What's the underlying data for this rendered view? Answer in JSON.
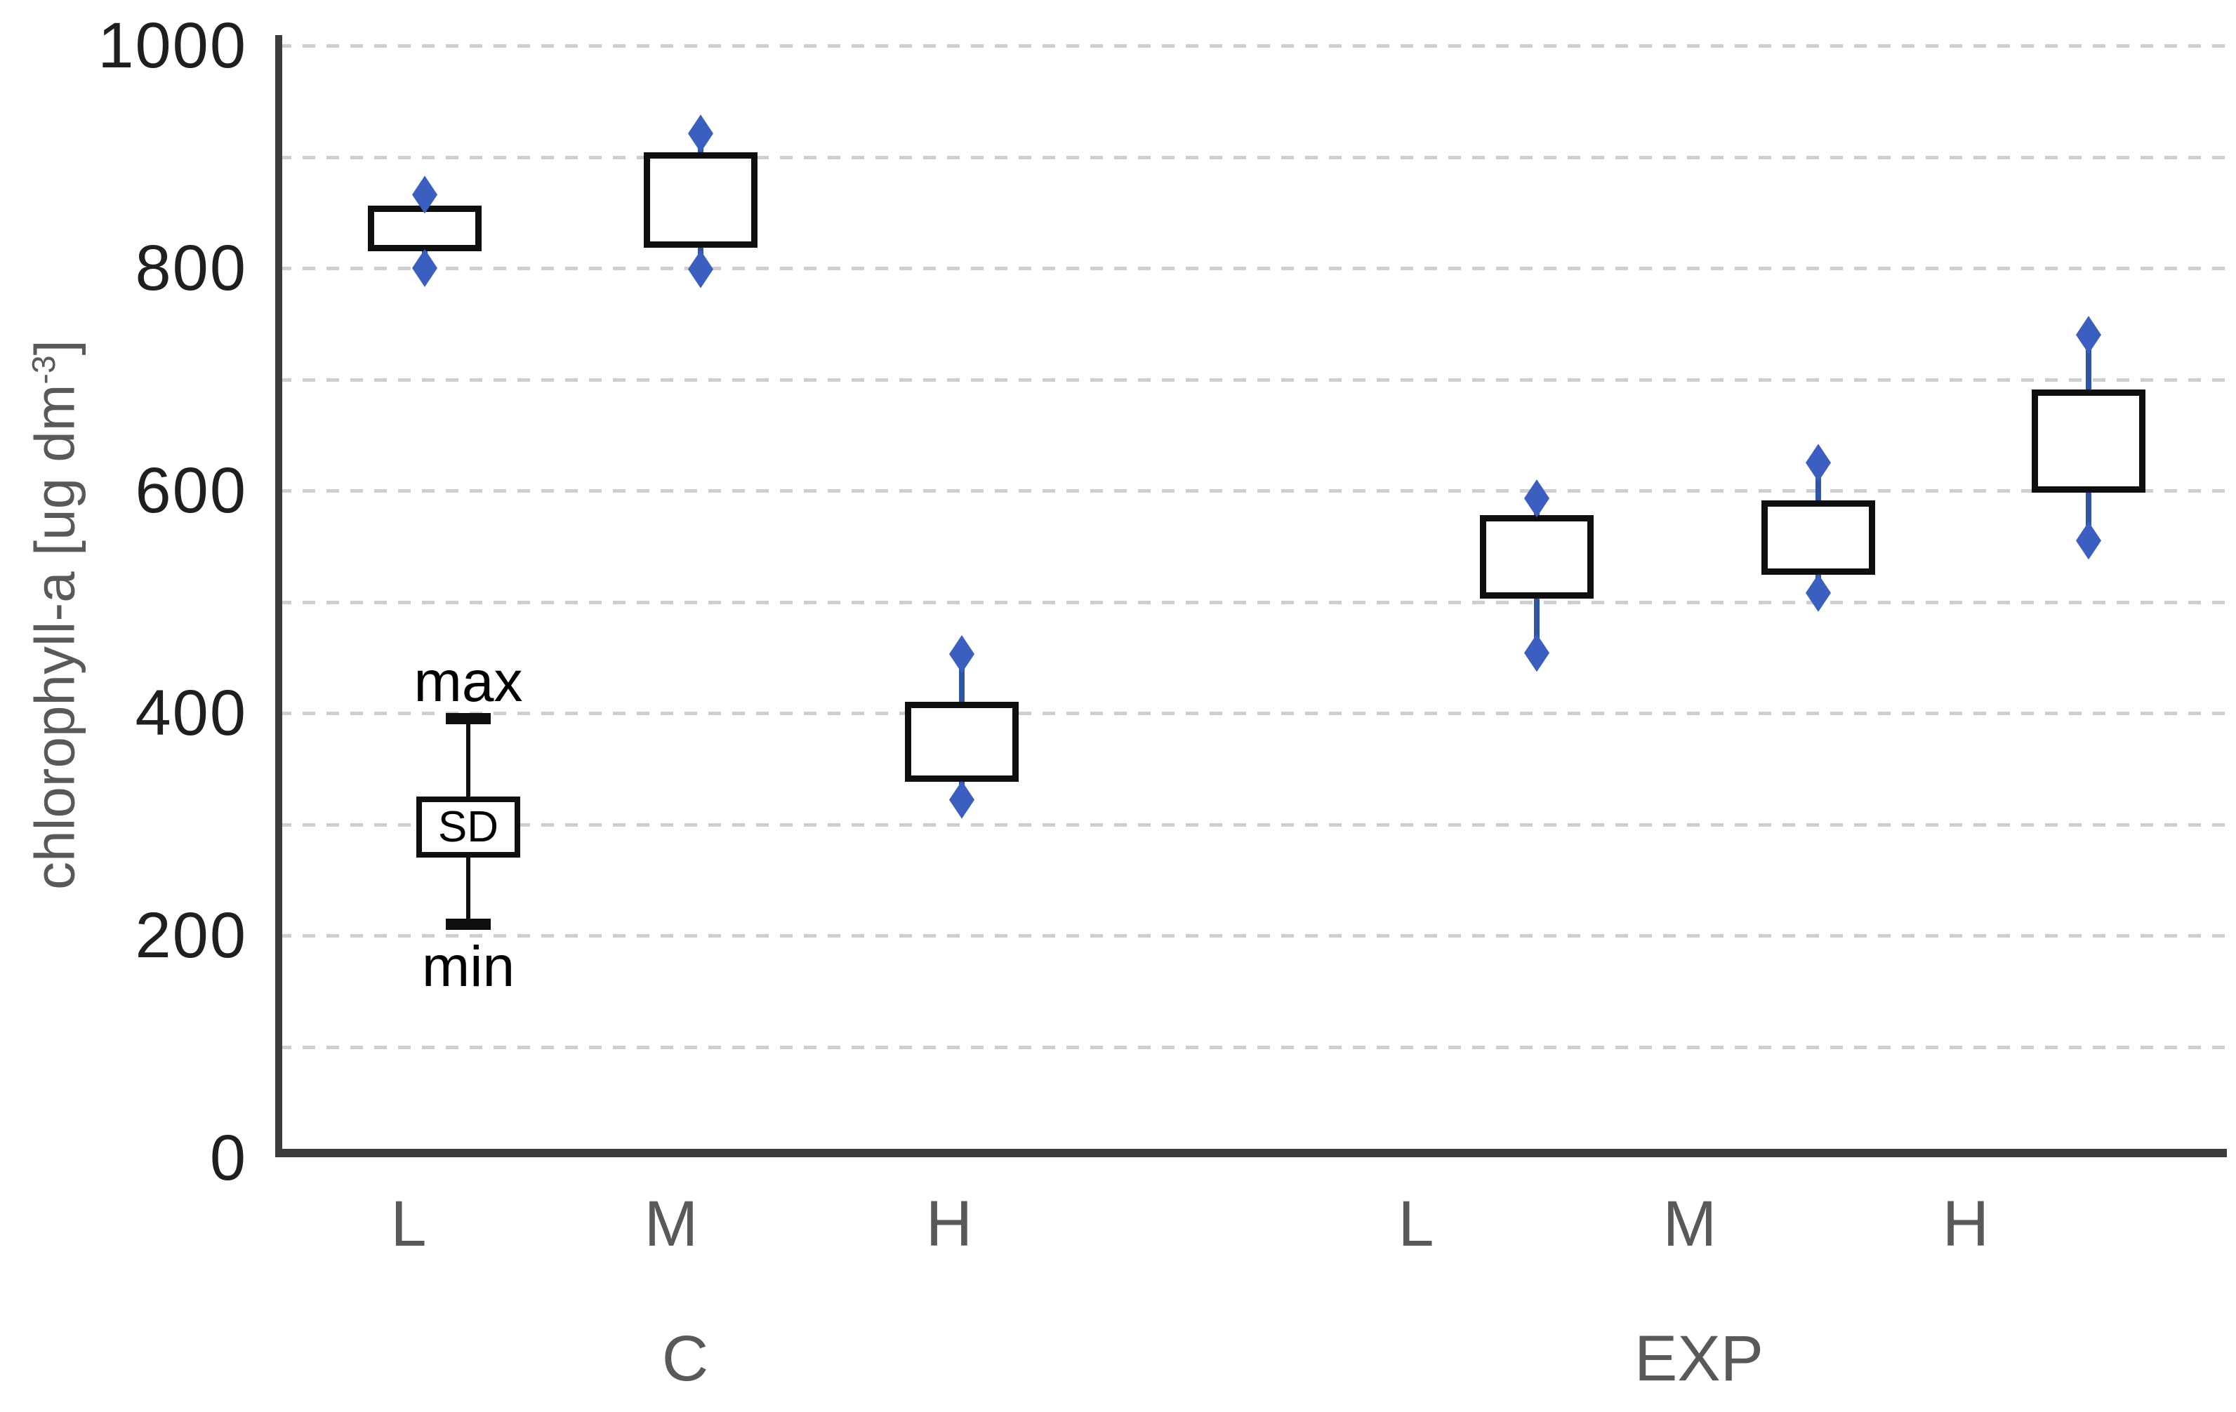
{
  "y_axis": {
    "title_main": "chlorophyll-a [ug dm",
    "title_sup": "-3",
    "title_close": "]",
    "tick_labels": [
      "0",
      "200",
      "400",
      "600",
      "800",
      "1000"
    ],
    "tick_values": [
      0,
      200,
      400,
      600,
      800,
      1000
    ],
    "min": 0,
    "max": 1000,
    "grid_step": 100
  },
  "x_axis": {
    "category_labels": [
      "L",
      "M",
      "H",
      "L",
      "M",
      "H"
    ],
    "group_labels": [
      "C",
      "EXP"
    ]
  },
  "legend": {
    "max_label": "max",
    "sd_label": "SD",
    "min_label": "min",
    "max_value": 395,
    "sd_high": 325,
    "sd_low": 270,
    "min_value": 210
  },
  "colors": {
    "background": "#ffffff",
    "grid": "#cfcfcf",
    "axis": "#3c3c3c",
    "tick_text": "#1f1f1f",
    "category_text": "#595959",
    "box_stroke": "#0f0f0f",
    "box_fill": "#ffffff",
    "whisker": "#2f55a4",
    "marker": "#3a5fc0"
  },
  "chart_data": {
    "type": "box",
    "title": "",
    "xlabel": "",
    "ylabel": "chlorophyll-a [ug dm⁻³]",
    "ylim": [
      0,
      1000
    ],
    "grid_step": 100,
    "legend_position": "inside lower-left, example glyph labeled max / SD / min",
    "box_meaning": "box = ±SD, whisker caps (diamonds) = min and max",
    "groups": [
      {
        "group": "C",
        "level": "L",
        "sd_low": 815,
        "sd_high": 856,
        "min": 800,
        "max": 866
      },
      {
        "group": "C",
        "level": "M",
        "sd_low": 818,
        "sd_high": 904,
        "min": 799,
        "max": 921
      },
      {
        "group": "C",
        "level": "H",
        "sd_low": 338,
        "sd_high": 410,
        "min": 322,
        "max": 453
      },
      {
        "group": "EXP",
        "level": "L",
        "sd_low": 503,
        "sd_high": 578,
        "min": 454,
        "max": 593
      },
      {
        "group": "EXP",
        "level": "M",
        "sd_low": 524,
        "sd_high": 591,
        "min": 508,
        "max": 625
      },
      {
        "group": "EXP",
        "level": "H",
        "sd_low": 598,
        "sd_high": 691,
        "min": 555,
        "max": 740
      }
    ]
  }
}
